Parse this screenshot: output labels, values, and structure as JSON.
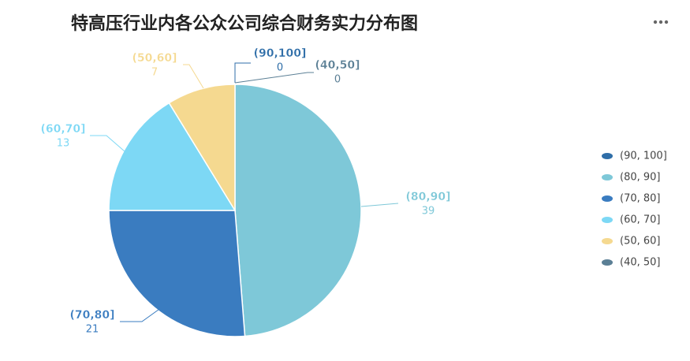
{
  "chart_data": {
    "type": "pie",
    "title": "特高压行业内各公众公司综合财务实力分布图",
    "categories": [
      "(90,100]",
      "(80,90]",
      "(70,80]",
      "(60,70]",
      "(50,60]",
      "(40,50]"
    ],
    "legend_labels": [
      "(90, 100]",
      "(80, 90]",
      "(70, 80]",
      "(60, 70]",
      "(50, 60]",
      "(40, 50]"
    ],
    "values": [
      0,
      39,
      21,
      13,
      7,
      0
    ],
    "colors": [
      "#2f6ea8",
      "#7ec8d8",
      "#3a7cc0",
      "#7dd8f5",
      "#f5d990",
      "#5b7f95"
    ],
    "legend_position": "right"
  }
}
